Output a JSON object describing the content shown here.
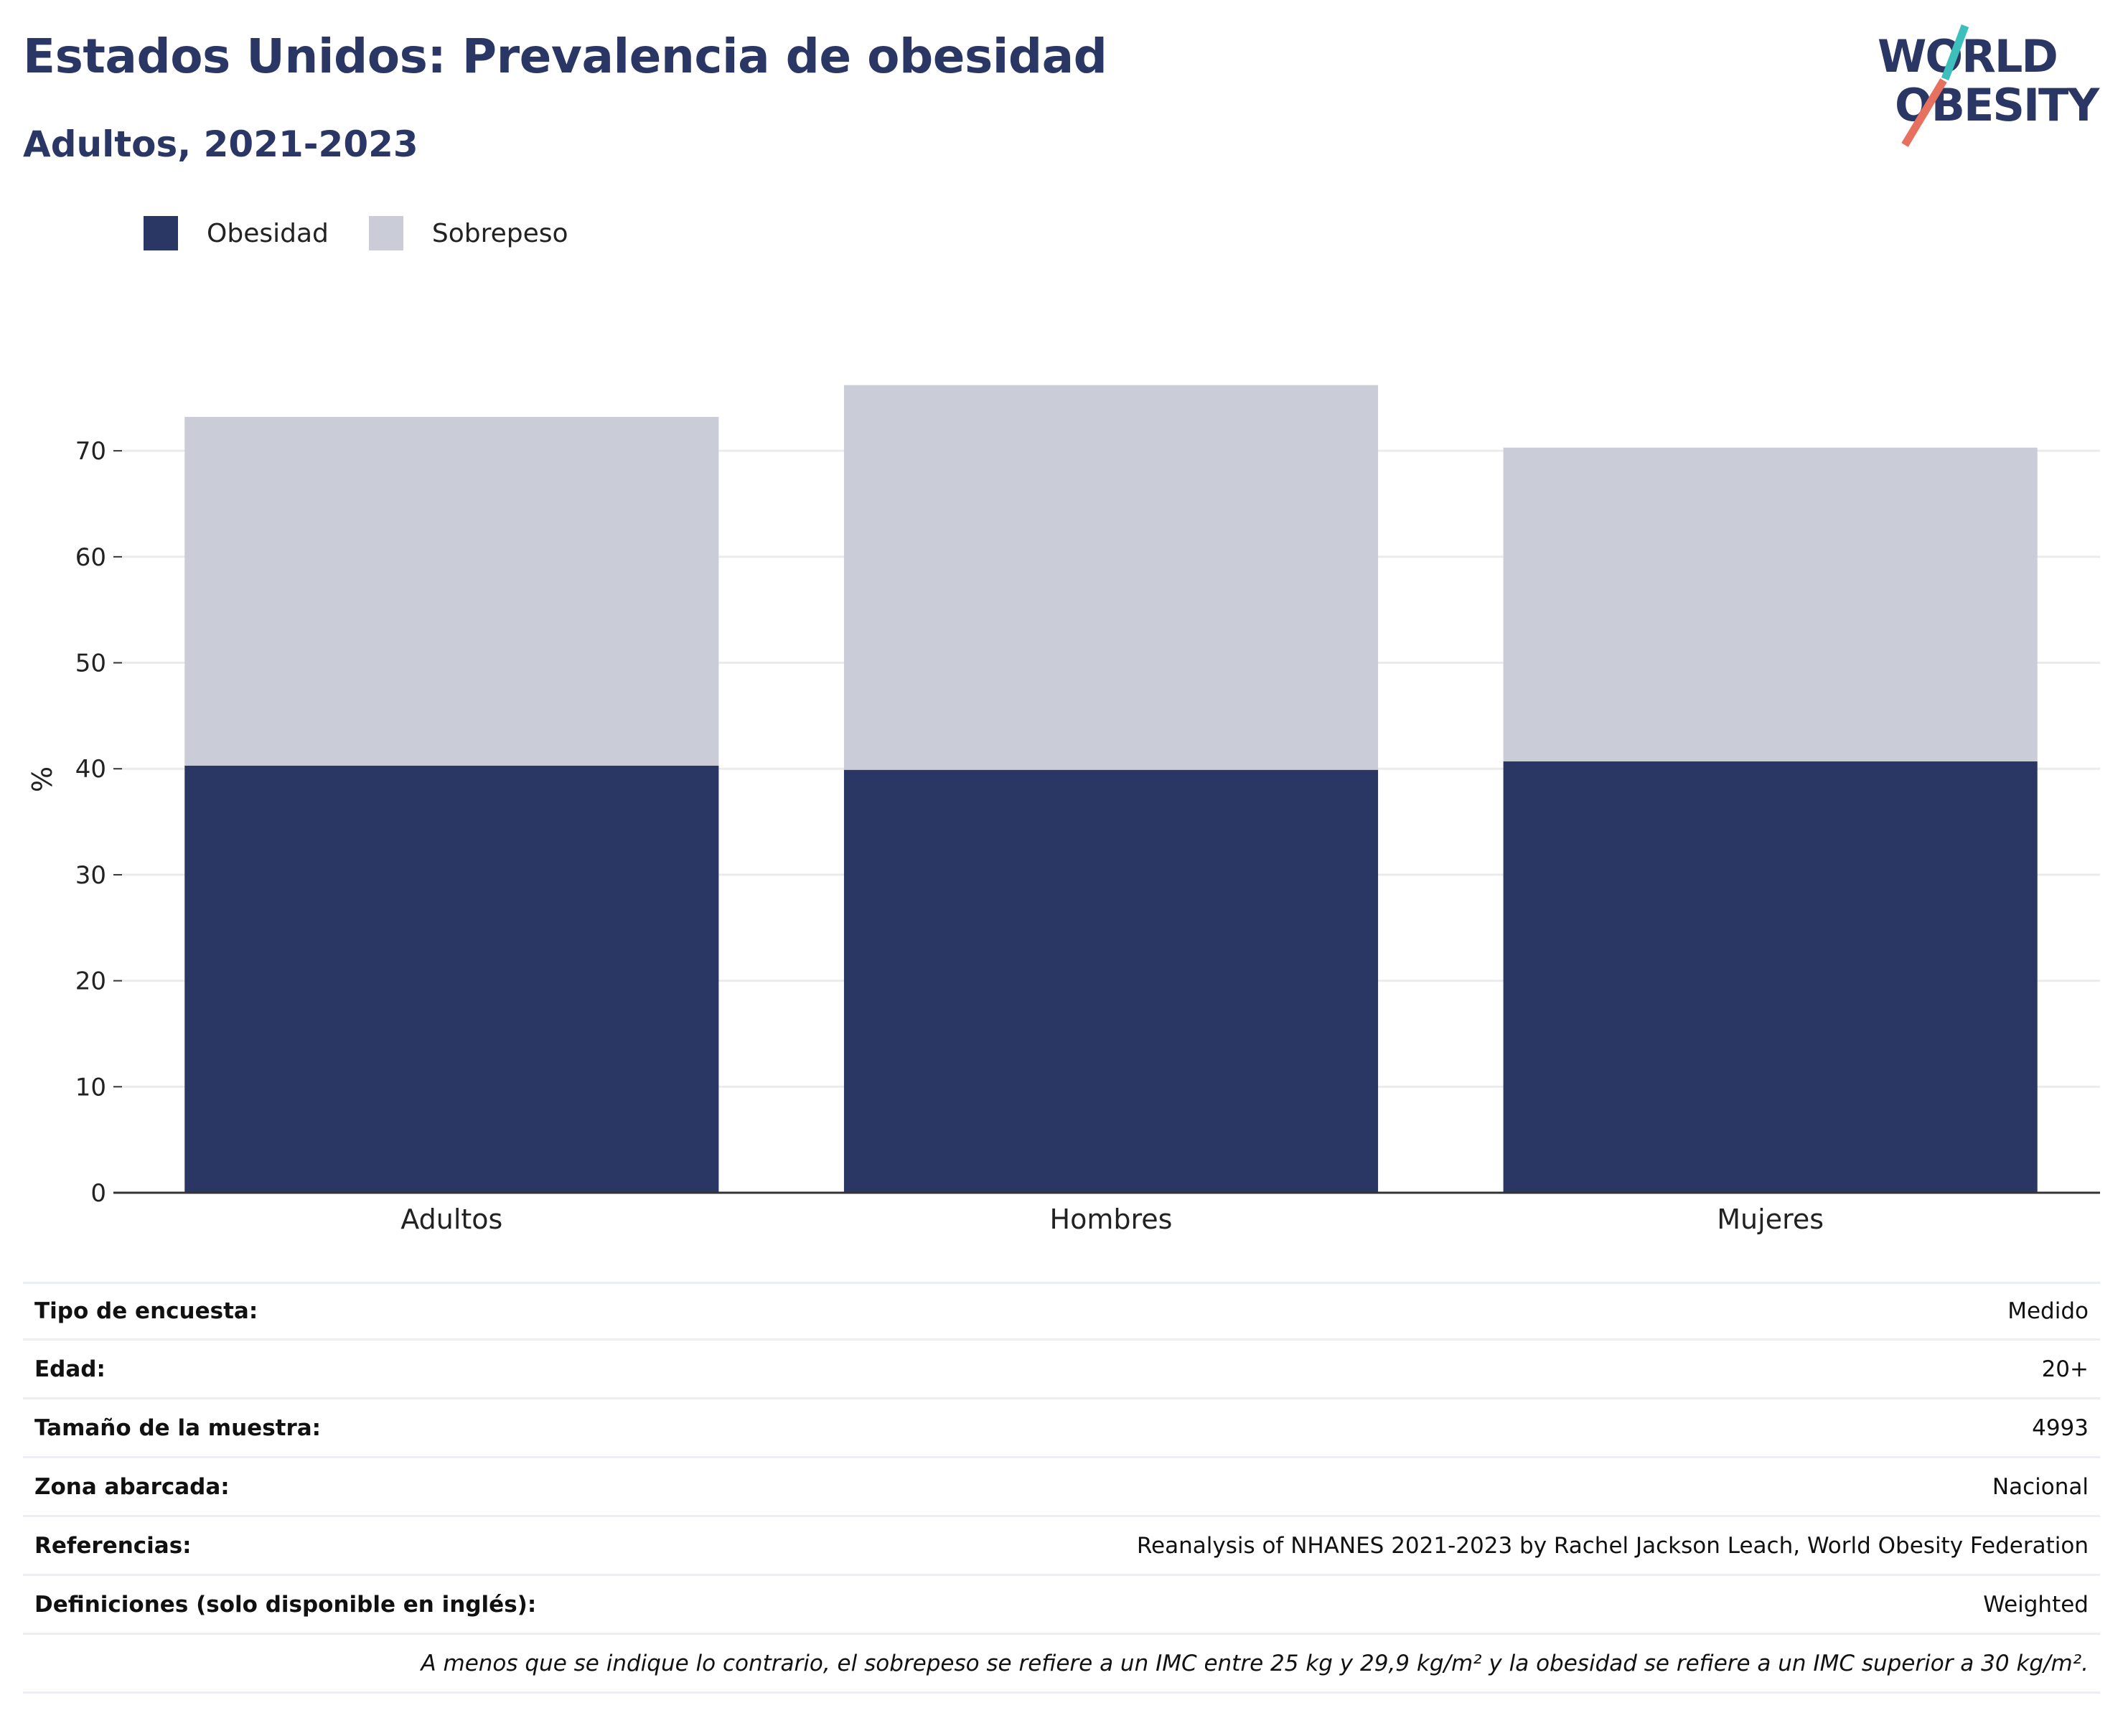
{
  "header": {
    "title": "Estados Unidos: Prevalencia de obesidad",
    "subtitle": "Adultos, 2021-2023"
  },
  "logo": {
    "line1": "WORLD",
    "line2": "OBESITY",
    "colors": {
      "text": "#2a3663",
      "teal": "#3cbfbd",
      "coral": "#e8705f"
    }
  },
  "legend": {
    "items": [
      {
        "label": "Obesidad",
        "color": "#2a3663"
      },
      {
        "label": "Sobrepeso",
        "color": "#cacdd8"
      }
    ]
  },
  "chart_data": {
    "type": "bar",
    "stacked": true,
    "categories": [
      "Adultos",
      "Hombres",
      "Mujeres"
    ],
    "series": [
      {
        "name": "Obesidad",
        "color": "#2a3663",
        "values": [
          40.3,
          39.9,
          40.7
        ]
      },
      {
        "name": "Sobrepeso",
        "color": "#cacdd8",
        "values": [
          32.9,
          36.3,
          29.6
        ]
      }
    ],
    "ylabel": "%",
    "xlabel": "",
    "ylim": [
      0,
      78
    ],
    "yticks": [
      0,
      10,
      20,
      30,
      40,
      50,
      60,
      70
    ],
    "grid": true,
    "legend_position": "top-left"
  },
  "info": {
    "rows": [
      {
        "key": "Tipo de encuesta:",
        "value": "Medido"
      },
      {
        "key": "Edad:",
        "value": "20+"
      },
      {
        "key": "Tamaño de la muestra:",
        "value": "4993"
      },
      {
        "key": "Zona abarcada:",
        "value": "Nacional"
      },
      {
        "key": "Referencias:",
        "value": "Reanalysis of NHANES 2021-2023 by Rachel Jackson Leach, World Obesity Federation"
      },
      {
        "key": "Definiciones (solo disponible en inglés):",
        "value": "Weighted"
      }
    ],
    "note": "A menos que se indique lo contrario, el sobrepeso se refiere a un IMC entre 25 kg y 29,9 kg/m² y la obesidad se refiere a un IMC superior a 30 kg/m²."
  }
}
